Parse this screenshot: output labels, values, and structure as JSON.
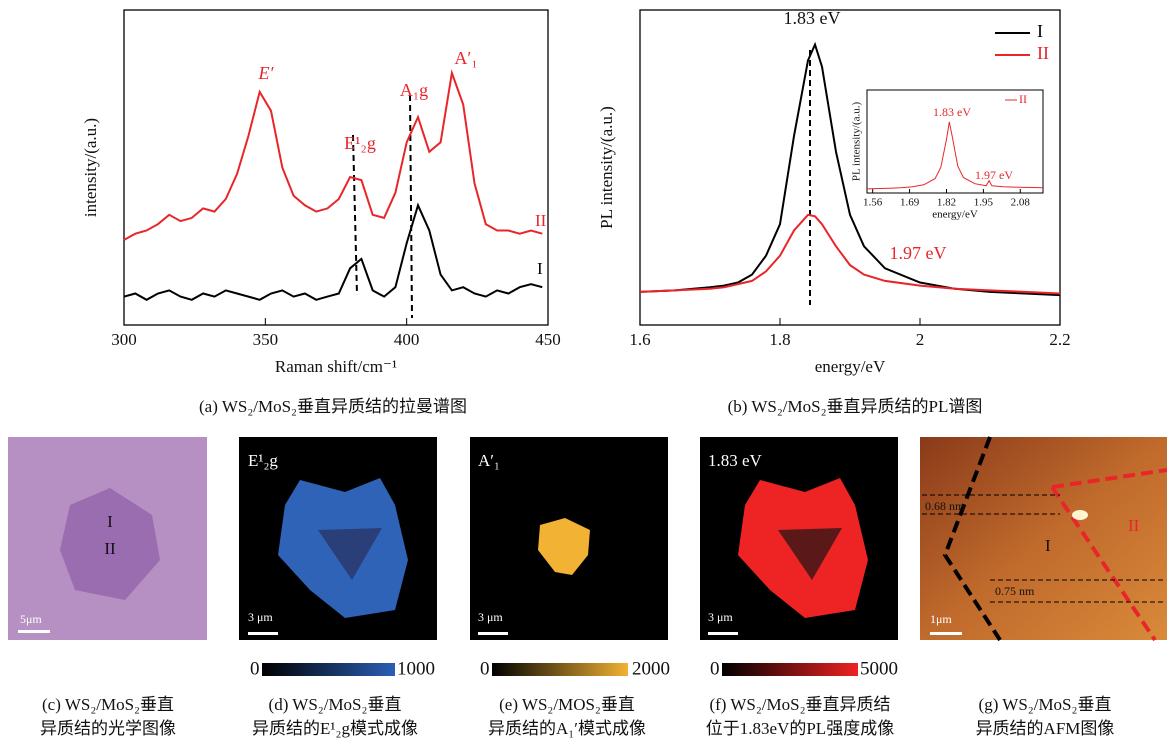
{
  "chart_data": [
    {
      "type": "line",
      "x_label": "Raman shift/cm⁻¹",
      "y_label": "intensity/(a.u.)",
      "x": [
        300,
        304,
        308,
        312,
        316,
        320,
        324,
        328,
        332,
        336,
        340,
        344,
        348,
        352,
        356,
        360,
        364,
        368,
        372,
        376,
        380,
        384,
        388,
        392,
        396,
        400,
        404,
        408,
        412,
        416,
        420,
        424,
        428,
        432,
        436,
        440,
        444,
        448
      ],
      "series": [
        {
          "name": "I",
          "color": "#000000",
          "values": [
            9,
            10,
            8,
            10,
            11,
            9,
            8,
            10,
            9,
            11,
            10,
            9,
            8,
            10,
            11,
            9,
            10,
            8,
            9,
            10,
            18,
            21,
            11,
            9,
            12,
            26,
            38,
            30,
            16,
            11,
            12,
            10,
            9,
            11,
            10,
            12,
            13,
            12
          ]
        },
        {
          "name": "II",
          "color": "#e8262a",
          "values": [
            27,
            29,
            30,
            32,
            35,
            33,
            34,
            37,
            36,
            40,
            48,
            60,
            74,
            68,
            50,
            41,
            38,
            36,
            37,
            40,
            47,
            46,
            35,
            34,
            42,
            58,
            66,
            55,
            58,
            80,
            70,
            45,
            32,
            30,
            30,
            29,
            30,
            29
          ]
        }
      ],
      "annotations": [
        "E′",
        "E¹₂g",
        "A₁g",
        "A′₁"
      ],
      "xlim": [
        300,
        450
      ],
      "xticks": [
        300,
        350,
        400,
        450
      ],
      "ylim": [
        0,
        100
      ]
    },
    {
      "type": "line",
      "x_label": "energy/eV",
      "y_label": "PL intensity/(a.u.)",
      "x": [
        1.6,
        1.65,
        1.7,
        1.72,
        1.74,
        1.76,
        1.78,
        1.8,
        1.82,
        1.84,
        1.85,
        1.86,
        1.88,
        1.9,
        1.92,
        1.95,
        2.0,
        2.05,
        2.1,
        2.15,
        2.2
      ],
      "series": [
        {
          "name": "I",
          "color": "#000000",
          "values": [
            10.5,
            11,
            12,
            12.5,
            13.5,
            16,
            22,
            32,
            60,
            84,
            89,
            82,
            55,
            35,
            25,
            18,
            13.5,
            11.5,
            10.5,
            10,
            9.5
          ]
        },
        {
          "name": "II",
          "color": "#e8262a",
          "values": [
            10.5,
            11,
            11.5,
            12,
            13,
            14,
            17,
            22,
            30,
            35,
            34.5,
            32,
            25,
            19,
            16,
            14,
            12.5,
            11.5,
            11,
            10.5,
            10
          ]
        }
      ],
      "annotations": [
        "1.83 eV",
        "1.97 eV"
      ],
      "xlim": [
        1.6,
        2.2
      ],
      "xticks": [
        1.6,
        1.8,
        2.0,
        2.2
      ],
      "ylim": [
        0,
        100
      ]
    },
    {
      "type": "line",
      "x_label": "energy/eV",
      "y_label": "PL intensity/(a.u.)",
      "x": [
        1.54,
        1.6,
        1.66,
        1.7,
        1.74,
        1.78,
        1.8,
        1.82,
        1.83,
        1.84,
        1.86,
        1.88,
        1.92,
        1.96,
        1.97,
        1.98,
        2.02,
        2.08,
        2.16
      ],
      "series": [
        {
          "name": "II",
          "color": "#e8262a",
          "values": [
            4,
            4.5,
            5,
            6,
            8,
            14,
            25,
            52,
            69,
            55,
            26,
            15,
            9,
            7,
            12,
            7,
            6,
            5.5,
            5
          ]
        }
      ],
      "annotations": [
        "1.83 eV",
        "1.97 eV"
      ],
      "xlim": [
        1.54,
        2.16
      ],
      "xticks": [
        1.56,
        1.69,
        1.82,
        1.95,
        2.08
      ],
      "ylim": [
        0,
        100
      ]
    }
  ],
  "captions": [
    "(a) WS₂/MoS₂垂直异质结的拉曼谱图",
    "(b) WS₂/MoS₂垂直异质结的PL谱图"
  ],
  "panels": [
    {
      "labels": [
        "I",
        "II"
      ],
      "scale_bar": "5μm",
      "caption": [
        "(c) WS₂/MoS₂垂直",
        "异质结的光学图像"
      ]
    },
    {
      "labels": [
        "E¹₂g"
      ],
      "scale_bar": "3 μm",
      "colorbar": [
        0,
        1000
      ],
      "caption": [
        "(d) WS₂/MoS₂垂直",
        "异质结的E¹₂g模式成像"
      ]
    },
    {
      "labels": [
        "A′₁"
      ],
      "scale_bar": "3 μm",
      "colorbar": [
        0,
        2000
      ],
      "caption": [
        "(e) WS₂/MOS₂垂直",
        "异质结的A₁′模式成像"
      ]
    },
    {
      "labels": [
        "1.83 eV"
      ],
      "scale_bar": "3 μm",
      "colorbar": [
        0,
        5000
      ],
      "caption": [
        "(f) WS₂/MoS₂垂直异质结",
        "位于1.83eV的PL强度成像"
      ]
    },
    {
      "labels": [
        "0.68 nm",
        "0.75 nm",
        "I",
        "II"
      ],
      "scale_bar": "1μm",
      "caption": [
        "(g) WS₂/MoS₂垂直",
        "异质结的AFM图像"
      ]
    }
  ]
}
